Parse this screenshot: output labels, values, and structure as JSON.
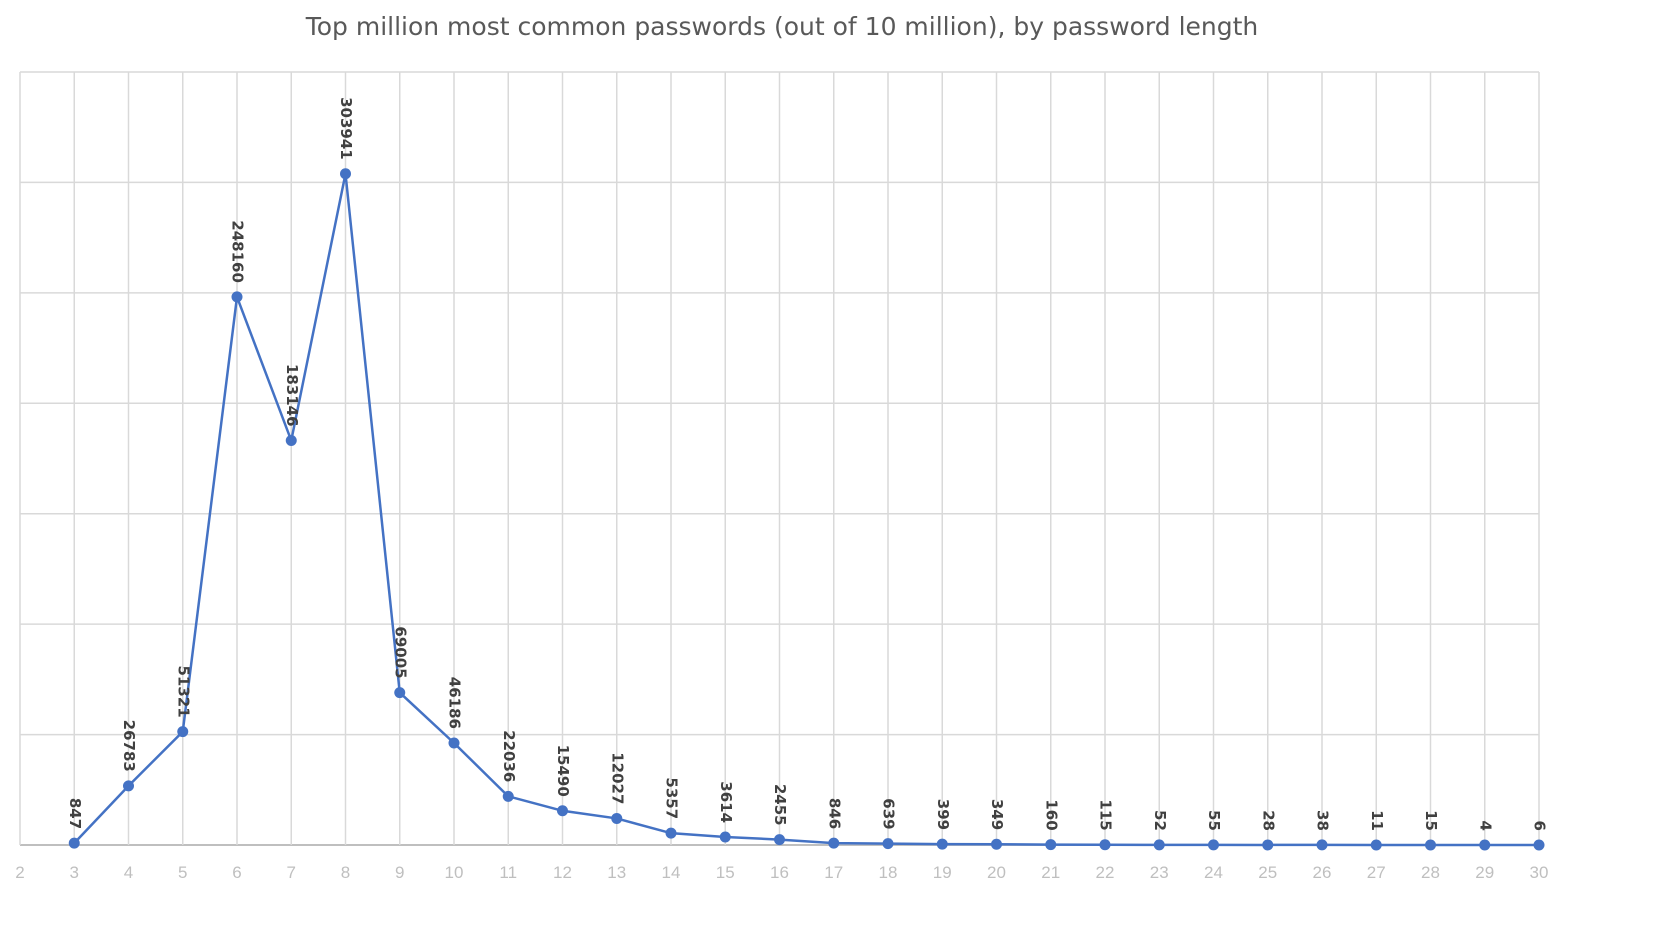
{
  "chart_data": {
    "type": "line",
    "title": "Top million most common passwords (out of 10 million), by password length",
    "xlabel": "",
    "ylabel": "",
    "x_ticks": [
      2,
      3,
      4,
      5,
      6,
      7,
      8,
      9,
      10,
      11,
      12,
      13,
      14,
      15,
      16,
      17,
      18,
      19,
      20,
      21,
      22,
      23,
      24,
      25,
      26,
      27,
      28,
      29,
      30
    ],
    "xlim": [
      2,
      30
    ],
    "ylim": [
      0,
      350000
    ],
    "y_gridline_step": 50000,
    "y_tick_labels_shown": false,
    "grid": true,
    "markers": true,
    "data_labels": true,
    "series_color": "#4472c4",
    "series": [
      {
        "x": [
          3,
          4,
          5,
          6,
          7,
          8,
          9,
          10,
          11,
          12,
          13,
          14,
          15,
          16,
          17,
          18,
          19,
          20,
          21,
          22,
          23,
          24,
          25,
          26,
          27,
          28,
          29,
          30
        ],
        "values": [
          847,
          26783,
          51321,
          248160,
          183146,
          303941,
          69005,
          46186,
          22036,
          15490,
          12027,
          5357,
          3614,
          2455,
          846,
          639,
          399,
          349,
          160,
          115,
          52,
          55,
          28,
          38,
          11,
          15,
          4,
          6
        ]
      }
    ]
  }
}
